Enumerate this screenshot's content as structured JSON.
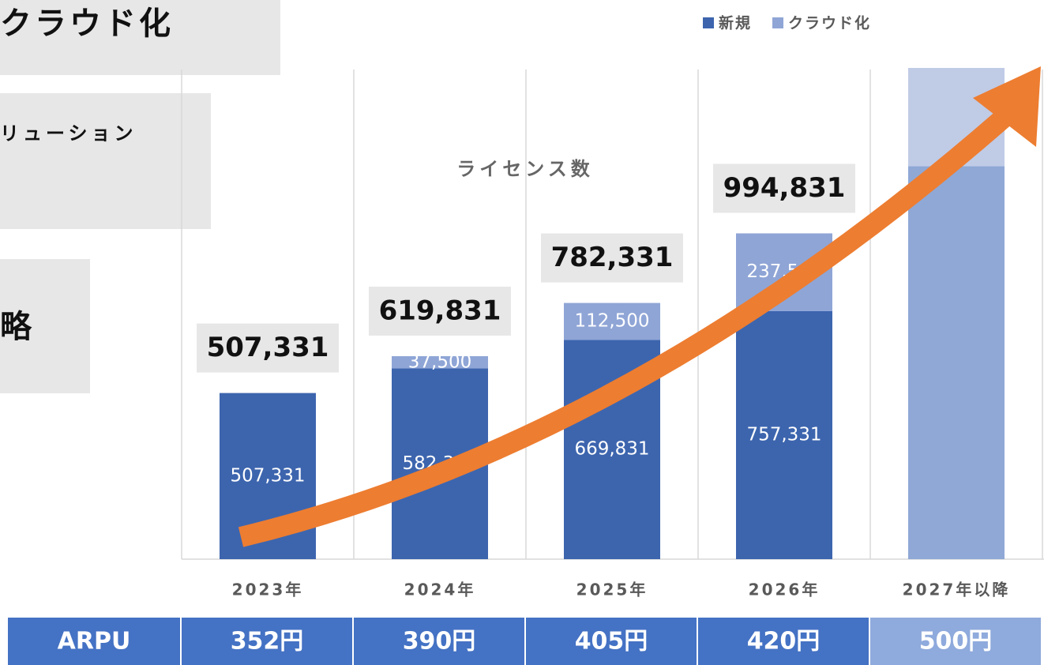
{
  "side_boxes": [
    "クラウド化",
    "リューション",
    "略"
  ],
  "chart_data": {
    "type": "bar",
    "stacked": true,
    "title": "ライセンス数",
    "categories": [
      "2023年",
      "2024年",
      "2025年",
      "2026年",
      "2027年以降"
    ],
    "series": [
      {
        "name": "新規",
        "color": "#3d65ae",
        "colors": [
          "#3d65ae",
          "#3d65ae",
          "#3d65ae",
          "#3d65ae",
          "#8fa8d6"
        ],
        "values": [
          507331,
          582331,
          669831,
          757331,
          1200000
        ],
        "value_labels": [
          "507,331",
          "582,331",
          "669,831",
          "757,331",
          null
        ]
      },
      {
        "name": "クラウド化",
        "color": "#8fa5d6",
        "colors": [
          "#8fa5d6",
          "#8fa5d6",
          "#8fa5d6",
          "#8fa5d6",
          "#c0cbe6"
        ],
        "values": [
          null,
          37500,
          112500,
          237500,
          300000
        ],
        "value_labels": [
          null,
          "37,500",
          "112,500",
          "237,500",
          null
        ]
      }
    ],
    "totals": [
      507331,
      619831,
      782331,
      994831,
      null
    ],
    "total_labels": [
      "507,331",
      "619,831",
      "782,331",
      "994,831",
      null
    ],
    "ylim": [
      0,
      1500000
    ],
    "legend": "top-right"
  },
  "arpu": {
    "label": "ARPU",
    "values": [
      "352円",
      "390円",
      "405円",
      "420円",
      "500円"
    ]
  }
}
